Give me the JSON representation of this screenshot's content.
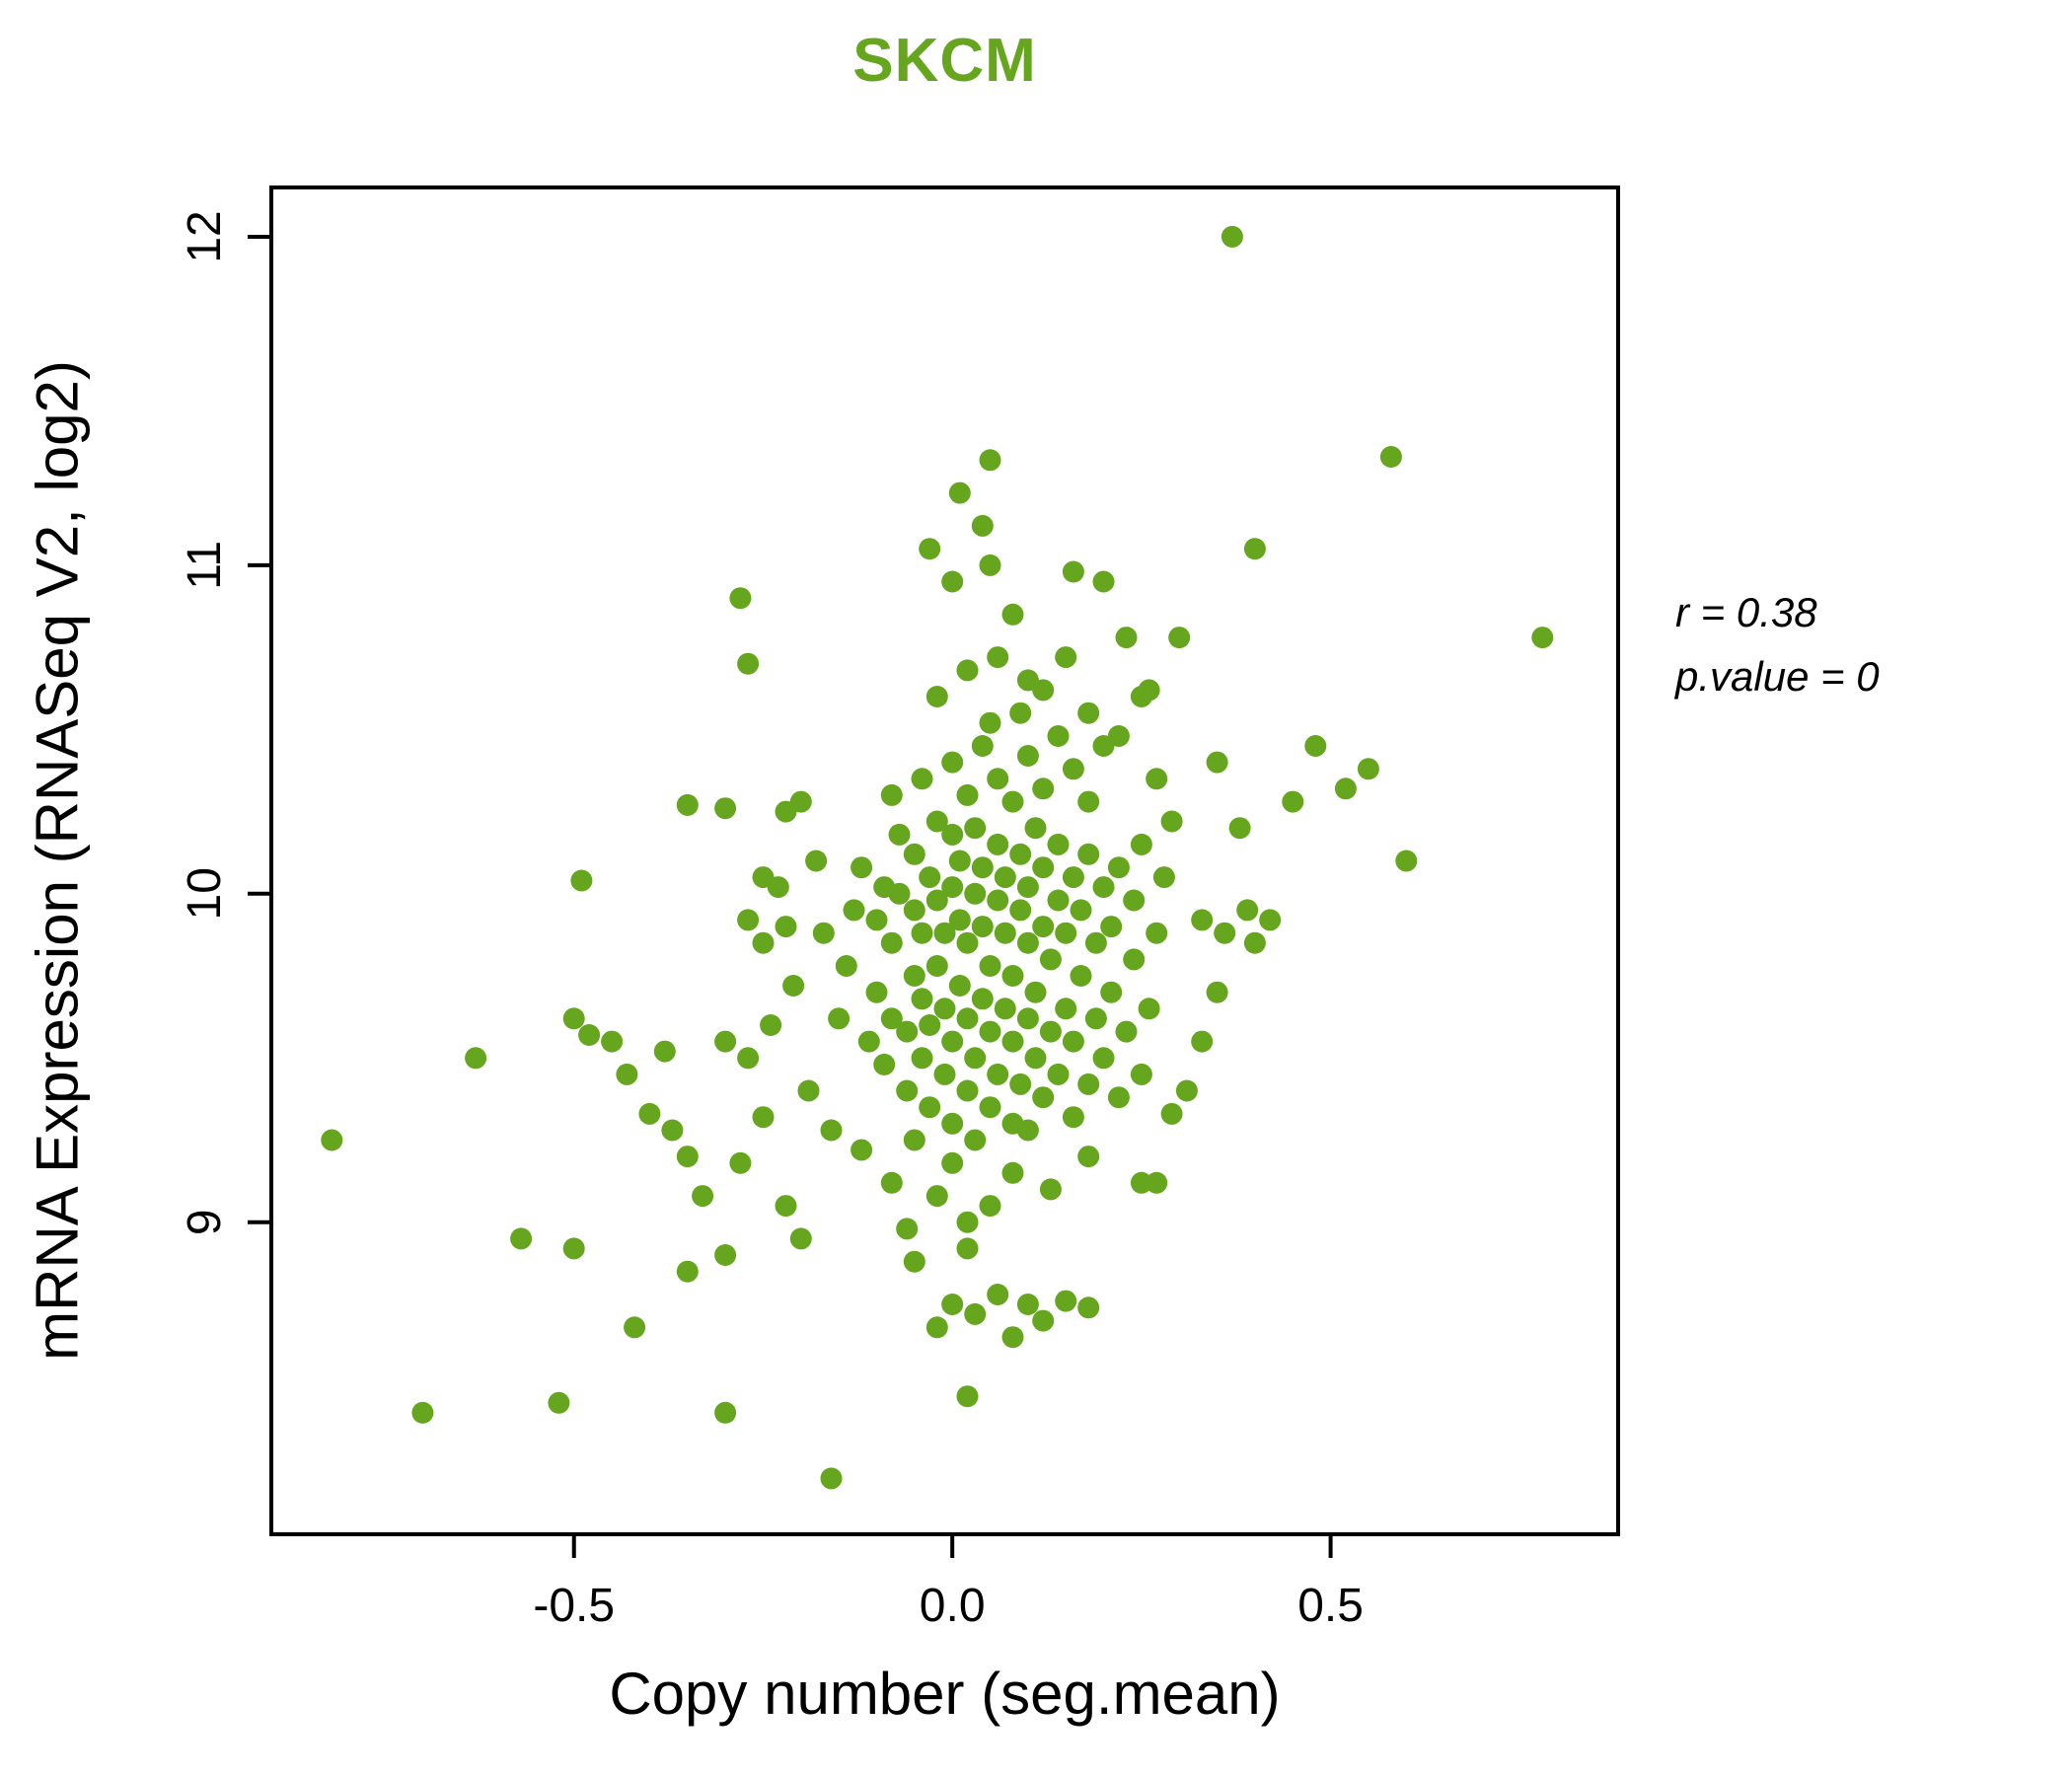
{
  "chart_data": {
    "type": "scatter",
    "title": "SKCM",
    "xlabel": "Copy number (seg.mean)",
    "ylabel": "mRNA Expression (RNASeq V2, log2)",
    "xlim": [
      -0.9,
      0.88
    ],
    "ylim": [
      8.05,
      12.15
    ],
    "grid": false,
    "legend": "none",
    "title_color": "#66A61E",
    "point_color": "#66A61E",
    "axis_color": "#000000",
    "annotation": {
      "line1": "r = 0.38",
      "line2": "p.value = 0"
    },
    "xticks": [
      {
        "value": -0.5,
        "label": "-0.5"
      },
      {
        "value": 0.0,
        "label": "0.0"
      },
      {
        "value": 0.5,
        "label": "0.5"
      }
    ],
    "yticks": [
      {
        "value": 9,
        "label": "9"
      },
      {
        "value": 10,
        "label": "10"
      },
      {
        "value": 11,
        "label": "11"
      },
      {
        "value": 12,
        "label": "12"
      }
    ],
    "points": [
      [
        0.37,
        12.0
      ],
      [
        0.58,
        11.33
      ],
      [
        0.05,
        11.32
      ],
      [
        0.01,
        11.22
      ],
      [
        0.04,
        11.12
      ],
      [
        0.4,
        11.05
      ],
      [
        -0.03,
        11.05
      ],
      [
        0.05,
        11.0
      ],
      [
        0.0,
        10.95
      ],
      [
        0.78,
        10.78
      ],
      [
        -0.28,
        10.9
      ],
      [
        -0.27,
        10.7
      ],
      [
        0.08,
        10.85
      ],
      [
        0.16,
        10.98
      ],
      [
        0.2,
        10.95
      ],
      [
        0.23,
        10.78
      ],
      [
        0.3,
        10.78
      ],
      [
        0.26,
        10.62
      ],
      [
        0.15,
        10.72
      ],
      [
        0.12,
        10.62
      ],
      [
        0.18,
        10.55
      ],
      [
        0.22,
        10.48
      ],
      [
        -0.02,
        10.6
      ],
      [
        0.02,
        10.68
      ],
      [
        0.06,
        10.72
      ],
      [
        0.1,
        10.65
      ],
      [
        0.25,
        10.6
      ],
      [
        -0.82,
        9.25
      ],
      [
        -0.7,
        8.42
      ],
      [
        -0.52,
        8.45
      ],
      [
        -0.3,
        8.42
      ],
      [
        -0.16,
        8.22
      ],
      [
        0.02,
        8.47
      ],
      [
        -0.57,
        8.95
      ],
      [
        -0.5,
        8.92
      ],
      [
        -0.63,
        9.5
      ],
      [
        -0.48,
        9.57
      ],
      [
        -0.45,
        9.55
      ],
      [
        -0.5,
        9.62
      ],
      [
        -0.43,
        9.45
      ],
      [
        -0.4,
        9.33
      ],
      [
        -0.38,
        9.52
      ],
      [
        -0.37,
        9.28
      ],
      [
        -0.35,
        9.2
      ],
      [
        -0.33,
        9.08
      ],
      [
        -0.49,
        10.04
      ],
      [
        -0.35,
        10.27
      ],
      [
        -0.3,
        10.26
      ],
      [
        -0.42,
        8.68
      ],
      [
        -0.35,
        8.85
      ],
      [
        -0.3,
        8.9
      ],
      [
        -0.28,
        9.18
      ],
      [
        -0.25,
        9.32
      ],
      [
        -0.22,
        9.05
      ],
      [
        -0.2,
        8.95
      ],
      [
        -0.3,
        9.55
      ],
      [
        -0.27,
        9.5
      ],
      [
        -0.24,
        9.6
      ],
      [
        -0.25,
        9.85
      ],
      [
        -0.27,
        9.92
      ],
      [
        -0.25,
        10.05
      ],
      [
        -0.22,
        10.25
      ],
      [
        0.0,
        8.75
      ],
      [
        0.03,
        8.72
      ],
      [
        0.06,
        8.78
      ],
      [
        0.1,
        8.75
      ],
      [
        -0.02,
        8.68
      ],
      [
        0.12,
        8.7
      ],
      [
        0.08,
        8.65
      ],
      [
        -0.05,
        8.88
      ],
      [
        0.15,
        8.76
      ],
      [
        0.18,
        8.74
      ],
      [
        0.02,
        8.92
      ],
      [
        -0.06,
        8.98
      ],
      [
        -0.12,
        9.22
      ],
      [
        -0.08,
        9.12
      ],
      [
        -0.05,
        9.25
      ],
      [
        -0.02,
        9.08
      ],
      [
        0.0,
        9.18
      ],
      [
        0.03,
        9.25
      ],
      [
        0.05,
        9.05
      ],
      [
        0.08,
        9.15
      ],
      [
        0.1,
        9.28
      ],
      [
        0.13,
        9.1
      ],
      [
        0.02,
        9.0
      ],
      [
        0.25,
        9.12
      ],
      [
        0.18,
        9.2
      ],
      [
        0.27,
        9.12
      ],
      [
        0.29,
        9.33
      ],
      [
        0.35,
        10.4
      ],
      [
        0.38,
        10.2
      ],
      [
        0.42,
        9.92
      ],
      [
        0.45,
        10.28
      ],
      [
        0.48,
        10.45
      ],
      [
        0.52,
        10.32
      ],
      [
        0.55,
        10.38
      ],
      [
        0.6,
        10.1
      ],
      [
        0.4,
        9.85
      ],
      [
        0.35,
        9.7
      ],
      [
        0.33,
        9.55
      ],
      [
        0.33,
        9.92
      ],
      [
        0.36,
        9.88
      ],
      [
        0.39,
        9.95
      ],
      [
        0.31,
        9.4
      ],
      [
        -0.2,
        10.28
      ],
      [
        -0.18,
        10.1
      ],
      [
        -0.17,
        9.88
      ],
      [
        -0.19,
        9.4
      ],
      [
        -0.16,
        9.28
      ],
      [
        -0.21,
        9.72
      ],
      [
        -0.22,
        9.9
      ],
      [
        -0.23,
        10.02
      ],
      [
        -0.15,
        9.62
      ],
      [
        -0.14,
        9.78
      ],
      [
        -0.13,
        9.95
      ],
      [
        -0.12,
        10.08
      ],
      [
        -0.11,
        9.55
      ],
      [
        -0.1,
        9.7
      ],
      [
        -0.1,
        9.92
      ],
      [
        -0.09,
        10.02
      ],
      [
        -0.09,
        9.48
      ],
      [
        -0.08,
        9.62
      ],
      [
        -0.08,
        9.85
      ],
      [
        -0.07,
        10.0
      ],
      [
        -0.07,
        10.18
      ],
      [
        -0.06,
        9.4
      ],
      [
        -0.06,
        9.58
      ],
      [
        -0.05,
        9.75
      ],
      [
        -0.05,
        9.95
      ],
      [
        -0.05,
        10.12
      ],
      [
        -0.04,
        9.5
      ],
      [
        -0.04,
        9.68
      ],
      [
        -0.04,
        9.88
      ],
      [
        -0.03,
        10.05
      ],
      [
        -0.03,
        9.35
      ],
      [
        -0.03,
        9.6
      ],
      [
        -0.02,
        9.78
      ],
      [
        -0.02,
        9.98
      ],
      [
        -0.02,
        10.22
      ],
      [
        -0.01,
        9.45
      ],
      [
        -0.01,
        9.65
      ],
      [
        -0.01,
        9.88
      ],
      [
        0.0,
        10.02
      ],
      [
        0.0,
        10.18
      ],
      [
        0.0,
        9.3
      ],
      [
        0.0,
        9.55
      ],
      [
        0.01,
        9.72
      ],
      [
        0.01,
        9.92
      ],
      [
        0.01,
        10.1
      ],
      [
        0.02,
        9.4
      ],
      [
        0.02,
        9.62
      ],
      [
        0.02,
        9.85
      ],
      [
        0.03,
        10.0
      ],
      [
        0.03,
        10.2
      ],
      [
        0.03,
        9.5
      ],
      [
        0.04,
        9.68
      ],
      [
        0.04,
        9.9
      ],
      [
        0.04,
        10.08
      ],
      [
        0.05,
        9.35
      ],
      [
        0.05,
        9.58
      ],
      [
        0.05,
        9.78
      ],
      [
        0.06,
        9.98
      ],
      [
        0.06,
        10.15
      ],
      [
        0.06,
        9.45
      ],
      [
        0.07,
        9.65
      ],
      [
        0.07,
        9.88
      ],
      [
        0.07,
        10.05
      ],
      [
        0.08,
        9.3
      ],
      [
        0.08,
        9.55
      ],
      [
        0.08,
        9.75
      ],
      [
        0.09,
        9.95
      ],
      [
        0.09,
        10.12
      ],
      [
        0.09,
        9.42
      ],
      [
        0.1,
        9.62
      ],
      [
        0.1,
        9.85
      ],
      [
        0.1,
        10.02
      ],
      [
        0.11,
        10.2
      ],
      [
        0.11,
        9.5
      ],
      [
        0.11,
        9.7
      ],
      [
        0.12,
        9.9
      ],
      [
        0.12,
        10.08
      ],
      [
        0.12,
        9.38
      ],
      [
        0.13,
        9.58
      ],
      [
        0.13,
        9.8
      ],
      [
        0.14,
        9.98
      ],
      [
        0.14,
        10.15
      ],
      [
        0.14,
        9.45
      ],
      [
        0.15,
        9.65
      ],
      [
        0.15,
        9.88
      ],
      [
        0.16,
        10.05
      ],
      [
        0.16,
        9.32
      ],
      [
        0.16,
        9.55
      ],
      [
        0.17,
        9.75
      ],
      [
        0.17,
        9.95
      ],
      [
        0.18,
        10.12
      ],
      [
        0.18,
        9.42
      ],
      [
        0.19,
        9.62
      ],
      [
        0.19,
        9.85
      ],
      [
        0.2,
        10.02
      ],
      [
        0.2,
        9.5
      ],
      [
        0.21,
        9.7
      ],
      [
        0.21,
        9.9
      ],
      [
        0.22,
        10.08
      ],
      [
        0.22,
        9.38
      ],
      [
        0.23,
        9.58
      ],
      [
        0.24,
        9.8
      ],
      [
        0.24,
        9.98
      ],
      [
        0.25,
        10.15
      ],
      [
        0.25,
        9.45
      ],
      [
        0.26,
        9.65
      ],
      [
        0.27,
        9.88
      ],
      [
        0.28,
        10.05
      ],
      [
        -0.08,
        10.3
      ],
      [
        -0.04,
        10.35
      ],
      [
        0.0,
        10.4
      ],
      [
        0.02,
        10.3
      ],
      [
        0.04,
        10.45
      ],
      [
        0.06,
        10.35
      ],
      [
        0.08,
        10.28
      ],
      [
        0.1,
        10.42
      ],
      [
        0.12,
        10.32
      ],
      [
        0.14,
        10.48
      ],
      [
        0.16,
        10.38
      ],
      [
        0.18,
        10.28
      ],
      [
        0.2,
        10.45
      ],
      [
        0.05,
        10.52
      ],
      [
        0.09,
        10.55
      ],
      [
        0.27,
        10.35
      ],
      [
        0.29,
        10.22
      ]
    ]
  }
}
